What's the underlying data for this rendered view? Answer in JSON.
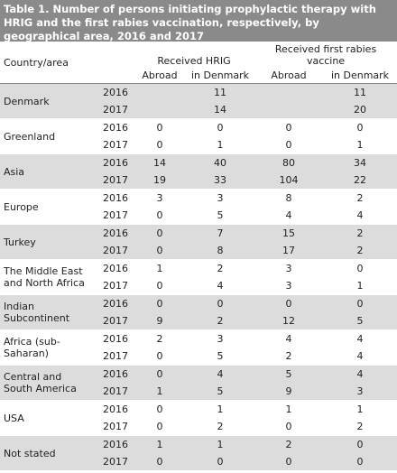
{
  "title": "Table 1. Number of persons initiating prophylactic therapy with HRIG and the first rabies vaccination, respectively, by geographical area, 2016 and 2017",
  "header": {
    "country": "Country/area",
    "group1": "Received HRIG",
    "group2": "Received first rabies vaccine",
    "columns": [
      "Abroad",
      "in Denmark",
      "Abroad",
      "in Denmark"
    ]
  },
  "years": [
    "2016",
    "2017"
  ],
  "rows": [
    {
      "country": "Denmark",
      "values": [
        [
          null,
          11,
          null,
          11
        ],
        [
          null,
          14,
          null,
          20
        ]
      ]
    },
    {
      "country": "Greenland",
      "values": [
        [
          0,
          0,
          0,
          0
        ],
        [
          0,
          1,
          0,
          1
        ]
      ]
    },
    {
      "country": "Asia",
      "values": [
        [
          14,
          40,
          80,
          34
        ],
        [
          19,
          33,
          104,
          22
        ]
      ]
    },
    {
      "country": "Europe",
      "values": [
        [
          3,
          3,
          8,
          2
        ],
        [
          0,
          5,
          4,
          4
        ]
      ]
    },
    {
      "country": "Turkey",
      "values": [
        [
          0,
          7,
          15,
          2
        ],
        [
          0,
          8,
          17,
          2
        ]
      ]
    },
    {
      "country": "The Middle East and North Africa",
      "values": [
        [
          1,
          2,
          3,
          0
        ],
        [
          0,
          4,
          3,
          1
        ]
      ]
    },
    {
      "country": "Indian Subcontinent",
      "values": [
        [
          0,
          0,
          0,
          0
        ],
        [
          9,
          2,
          12,
          5
        ]
      ]
    },
    {
      "country": "Africa (sub-Saharan)",
      "values": [
        [
          2,
          3,
          4,
          4
        ],
        [
          0,
          5,
          2,
          4
        ]
      ]
    },
    {
      "country": "Central and South America",
      "values": [
        [
          0,
          4,
          5,
          4
        ],
        [
          1,
          5,
          9,
          3
        ]
      ]
    },
    {
      "country": "USA",
      "values": [
        [
          0,
          1,
          1,
          1
        ],
        [
          0,
          2,
          0,
          2
        ]
      ]
    },
    {
      "country": "Not stated",
      "values": [
        [
          1,
          1,
          2,
          0
        ],
        [
          0,
          0,
          0,
          0
        ]
      ]
    }
  ]
}
